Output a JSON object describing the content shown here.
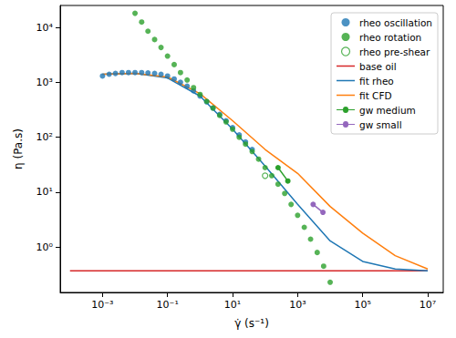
{
  "chart_data": {
    "type": "line",
    "x_label": "γ̇ (s⁻¹)",
    "y_label": "η (Pa.s)",
    "log": true,
    "grid": false,
    "legend": "upper right",
    "xlim": [
      5e-05,
      30000000
    ],
    "ylim": [
      0.15,
      25000
    ],
    "xticks": [
      {
        "value": 0.001,
        "label": "10⁻³"
      },
      {
        "value": 0.1,
        "label": "10⁻¹"
      },
      {
        "value": 10,
        "label": "10¹"
      },
      {
        "value": 1000,
        "label": "10³"
      },
      {
        "value": 100000,
        "label": "10⁵"
      },
      {
        "value": 10000000,
        "label": "10⁷"
      }
    ],
    "yticks": [
      {
        "value": 1,
        "label": "10⁰"
      },
      {
        "value": 10,
        "label": "10¹"
      },
      {
        "value": 100,
        "label": "10²"
      },
      {
        "value": 1000,
        "label": "10³"
      },
      {
        "value": 10000,
        "label": "10⁴"
      }
    ],
    "series": [
      {
        "name": "rheo oscillation",
        "type": "scatter",
        "color": "#1f77b4",
        "marker": "circle",
        "x": [
          0.001,
          0.0016,
          0.0025,
          0.004,
          0.0063,
          0.01,
          0.016,
          0.025,
          0.04,
          0.063,
          0.1,
          0.16,
          0.25,
          0.4,
          0.63,
          1,
          1.6,
          2.5,
          4,
          6.3,
          10,
          16,
          25,
          40
        ],
        "values": [
          1300,
          1400,
          1450,
          1500,
          1500,
          1500,
          1500,
          1480,
          1450,
          1400,
          1300,
          1150,
          1000,
          850,
          700,
          560,
          440,
          340,
          260,
          200,
          150,
          110,
          82,
          60
        ]
      },
      {
        "name": "rheo rotation",
        "type": "scatter",
        "color": "#2ca02c",
        "marker": "circle",
        "x": [
          0.01,
          0.016,
          0.025,
          0.04,
          0.063,
          0.1,
          0.16,
          0.25,
          0.4,
          0.63,
          1,
          1.6,
          2.5,
          4,
          6.3,
          10,
          16,
          25,
          40,
          63,
          100,
          160,
          250,
          400,
          630,
          1000,
          1600,
          2500,
          4000,
          6300,
          10000
        ],
        "values": [
          18000,
          12500,
          8500,
          6000,
          4300,
          3000,
          2100,
          1500,
          1100,
          800,
          600,
          450,
          340,
          250,
          190,
          140,
          100,
          75,
          55,
          40,
          28,
          20,
          14,
          9.5,
          6,
          3.8,
          2.3,
          1.4,
          0.8,
          0.45,
          0.23
        ]
      },
      {
        "name": "rheo pre-shear",
        "type": "scatter",
        "color": "#2ca02c",
        "marker": "open_circle",
        "x": [
          100
        ],
        "values": [
          20
        ]
      },
      {
        "name": "base oil",
        "type": "line",
        "color": "#d62728",
        "line_style": "solid",
        "x": [
          0.0001,
          10000000
        ],
        "values": [
          0.37,
          0.37
        ]
      },
      {
        "name": "fit rheo",
        "type": "line",
        "color": "#1f77b4",
        "line_style": "solid",
        "x": [
          0.001,
          0.01,
          0.1,
          1,
          10,
          100,
          1000,
          10000,
          100000,
          1000000,
          10000000
        ],
        "values": [
          1400,
          1450,
          1200,
          560,
          140,
          30,
          6,
          1.3,
          0.55,
          0.4,
          0.37
        ]
      },
      {
        "name": "fit CFD",
        "type": "line",
        "color": "#ff7f0e",
        "line_style": "solid",
        "x": [
          0.001,
          0.01,
          0.1,
          1,
          10,
          100,
          1000,
          10000,
          100000,
          1000000,
          10000000
        ],
        "values": [
          1400,
          1450,
          1250,
          620,
          200,
          60,
          22,
          5.5,
          1.8,
          0.7,
          0.4
        ]
      },
      {
        "name": "gw medium",
        "type": "line",
        "color": "#2ca02c",
        "line_style": "solid",
        "marker": "circle",
        "x": [
          250,
          500
        ],
        "values": [
          28,
          16
        ]
      },
      {
        "name": "gw small",
        "type": "line",
        "color": "#9467bd",
        "line_style": "solid",
        "marker": "circle",
        "x": [
          3000,
          6000
        ],
        "values": [
          6,
          4.3
        ]
      }
    ]
  }
}
